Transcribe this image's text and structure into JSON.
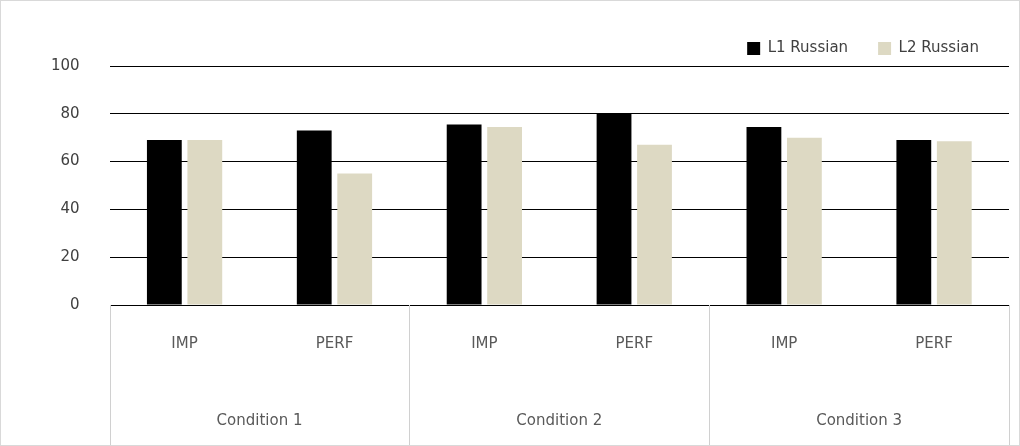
{
  "chart_data": {
    "type": "bar",
    "categories": [
      "IMP",
      "PERF",
      "IMP",
      "PERF",
      "IMP",
      "PERF"
    ],
    "series": [
      {
        "name": "L1 Russian",
        "color": "#000000",
        "values": [
          69,
          73,
          75.5,
          80,
          74.5,
          69
        ]
      },
      {
        "name": "L2 Russian",
        "color": "#ddd9c3",
        "values": [
          69,
          55,
          74.5,
          67,
          70,
          68.5
        ]
      }
    ],
    "annotations": [
      "Condition 1",
      "Condition 2",
      "Condition 3"
    ],
    "ylim": [
      0,
      100
    ],
    "yticks": [
      0,
      20,
      40,
      60,
      80,
      100
    ],
    "grid": "y",
    "legend": "top right"
  }
}
